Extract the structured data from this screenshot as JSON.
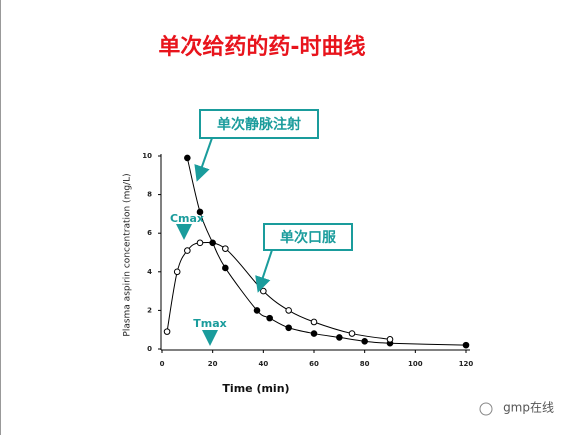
{
  "chart_data": {
    "type": "line",
    "title": "单次给药的药-时曲线",
    "x_label": "Time (min)",
    "y_label": "Plasma aspirin concentration (mg/L)",
    "xlim": [
      0,
      120
    ],
    "xticks": [
      0,
      20,
      40,
      60,
      80,
      100,
      120
    ],
    "ylim": [
      0,
      10
    ],
    "yticks": [
      0,
      2,
      4,
      6,
      8,
      10
    ],
    "series": [
      {
        "name": "单次静脉注射",
        "color": "#000000",
        "marker": "filled",
        "x": [
          10,
          15,
          20,
          25,
          37.5,
          42.5,
          50,
          60,
          70,
          80,
          90,
          120
        ],
        "values": [
          9.9,
          7.1,
          5.5,
          4.2,
          2.0,
          1.6,
          1.1,
          0.8,
          0.6,
          0.4,
          0.3,
          0.2
        ]
      },
      {
        "name": "单次口服",
        "color": "#000000",
        "marker": "open",
        "x": [
          2,
          6,
          10,
          15,
          25,
          40,
          50,
          60,
          75,
          90
        ],
        "values": [
          0.9,
          4.0,
          5.1,
          5.5,
          5.2,
          3.0,
          2.0,
          1.4,
          0.8,
          0.5
        ]
      }
    ],
    "annotations": [
      "Cmax",
      "Tmax"
    ],
    "annotation_color": "#1a9c9c",
    "watermark": "gmp在线"
  }
}
